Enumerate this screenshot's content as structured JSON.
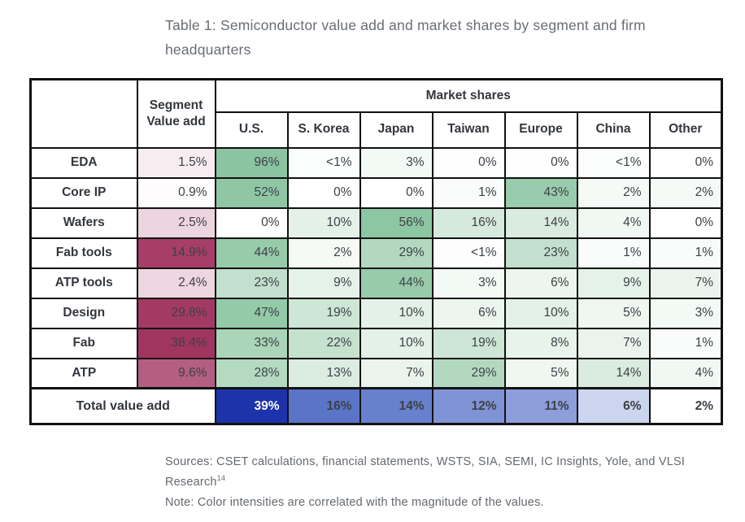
{
  "title": "Table 1: Semiconductor value add and market shares by segment and firm headquarters",
  "table": {
    "corner_label": "",
    "value_add_header": "Segment Value add",
    "group_header": "Market shares",
    "columns": [
      "U.S.",
      "S. Korea",
      "Japan",
      "Taiwan",
      "Europe",
      "China",
      "Other"
    ],
    "rows": [
      {
        "label": "EDA",
        "value_add": {
          "text": "1.5%",
          "bg": "#f7edf1"
        },
        "cells": [
          {
            "text": "96%",
            "bg": "#8ac4a1"
          },
          {
            "text": "<1%",
            "bg": "#fbfdfc"
          },
          {
            "text": "3%",
            "bg": "#f3f9f5"
          },
          {
            "text": "0%",
            "bg": "#fdfefd"
          },
          {
            "text": "0%",
            "bg": "#fdfefd"
          },
          {
            "text": "<1%",
            "bg": "#fbfdfc"
          },
          {
            "text": "0%",
            "bg": "#ffffff"
          }
        ]
      },
      {
        "label": "Core IP",
        "value_add": {
          "text": "0.9%",
          "bg": "#fefcfd"
        },
        "cells": [
          {
            "text": "52%",
            "bg": "#8fc7a5"
          },
          {
            "text": "0%",
            "bg": "#ffffff"
          },
          {
            "text": "0%",
            "bg": "#ffffff"
          },
          {
            "text": "1%",
            "bg": "#f9fcfa"
          },
          {
            "text": "43%",
            "bg": "#99ccac"
          },
          {
            "text": "2%",
            "bg": "#f6faf7"
          },
          {
            "text": "2%",
            "bg": "#f6faf7"
          }
        ]
      },
      {
        "label": "Wafers",
        "value_add": {
          "text": "2.5%",
          "bg": "#edd5df"
        },
        "cells": [
          {
            "text": "0%",
            "bg": "#ffffff"
          },
          {
            "text": "10%",
            "bg": "#e3f1e8"
          },
          {
            "text": "56%",
            "bg": "#8dc6a3"
          },
          {
            "text": "16%",
            "bg": "#d5e9dc"
          },
          {
            "text": "14%",
            "bg": "#d9ecdf"
          },
          {
            "text": "4%",
            "bg": "#f1f8f3"
          },
          {
            "text": "0%",
            "bg": "#ffffff"
          }
        ]
      },
      {
        "label": "Fab tools",
        "value_add": {
          "text": "14.9%",
          "bg": "#a63e67"
        },
        "cells": [
          {
            "text": "44%",
            "bg": "#97cbaa"
          },
          {
            "text": "2%",
            "bg": "#f6faf7"
          },
          {
            "text": "29%",
            "bg": "#b2d9c0"
          },
          {
            "text": "<1%",
            "bg": "#fcfdfc"
          },
          {
            "text": "23%",
            "bg": "#c2e0cd"
          },
          {
            "text": "1%",
            "bg": "#f9fcfa"
          },
          {
            "text": "1%",
            "bg": "#f9fcfa"
          }
        ]
      },
      {
        "label": "ATP tools",
        "value_add": {
          "text": "2.4%",
          "bg": "#eed6e0"
        },
        "cells": [
          {
            "text": "23%",
            "bg": "#c2e0cd"
          },
          {
            "text": "9%",
            "bg": "#e5f2e9"
          },
          {
            "text": "44%",
            "bg": "#97cbaa"
          },
          {
            "text": "3%",
            "bg": "#f3f9f5"
          },
          {
            "text": "6%",
            "bg": "#ecf6ef"
          },
          {
            "text": "9%",
            "bg": "#e5f2e9"
          },
          {
            "text": "7%",
            "bg": "#eaf4ed"
          }
        ]
      },
      {
        "label": "Design",
        "value_add": {
          "text": "29.8%",
          "bg": "#a33a64"
        },
        "cells": [
          {
            "text": "47%",
            "bg": "#94caa8"
          },
          {
            "text": "19%",
            "bg": "#cde6d6"
          },
          {
            "text": "10%",
            "bg": "#e3f1e8"
          },
          {
            "text": "6%",
            "bg": "#ecf6ef"
          },
          {
            "text": "10%",
            "bg": "#e3f1e8"
          },
          {
            "text": "5%",
            "bg": "#eff7f1"
          },
          {
            "text": "3%",
            "bg": "#f3f9f5"
          }
        ]
      },
      {
        "label": "Fab",
        "value_add": {
          "text": "38.4%",
          "bg": "#a03660"
        },
        "cells": [
          {
            "text": "33%",
            "bg": "#aad5b9"
          },
          {
            "text": "22%",
            "bg": "#c5e2cf"
          },
          {
            "text": "10%",
            "bg": "#e3f1e8"
          },
          {
            "text": "19%",
            "bg": "#cde6d6"
          },
          {
            "text": "8%",
            "bg": "#e7f3eb"
          },
          {
            "text": "7%",
            "bg": "#eaf4ed"
          },
          {
            "text": "1%",
            "bg": "#f9fcfa"
          }
        ]
      },
      {
        "label": "ATP",
        "value_add": {
          "text": "9.6%",
          "bg": "#b35e82"
        },
        "cells": [
          {
            "text": "28%",
            "bg": "#b4dac2"
          },
          {
            "text": "13%",
            "bg": "#dbede1"
          },
          {
            "text": "7%",
            "bg": "#eaf4ed"
          },
          {
            "text": "29%",
            "bg": "#b2d9c0"
          },
          {
            "text": "5%",
            "bg": "#eff7f1"
          },
          {
            "text": "14%",
            "bg": "#d9ecdf"
          },
          {
            "text": "4%",
            "bg": "#f1f8f3"
          }
        ]
      }
    ],
    "total": {
      "label": "Total value add",
      "cells": [
        {
          "text": "39%",
          "bg": "#1d33ab",
          "fg": "#ffffff"
        },
        {
          "text": "16%",
          "bg": "#5a74c8"
        },
        {
          "text": "14%",
          "bg": "#6781ce"
        },
        {
          "text": "12%",
          "bg": "#8093d6"
        },
        {
          "text": "11%",
          "bg": "#8d9eda"
        },
        {
          "text": "6%",
          "bg": "#cbd5ee"
        },
        {
          "text": "2%",
          "bg": "#ffffff"
        }
      ]
    }
  },
  "footer": {
    "sources": "Sources: CSET calculations, financial statements, WSTS, SIA, SEMI, IC Insights, Yole, and VLSI Research",
    "footnote_marker": "14",
    "note": "Note: Color intensities are correlated with the magnitude of the values."
  },
  "colors": {
    "share_scale_max": "#8ac4a1",
    "value_add_scale_max": "#a03660",
    "total_scale_max": "#1d33ab",
    "border": "#111111",
    "text": "#3d4147",
    "muted_text": "#64696f"
  },
  "chart_data": {
    "type": "table",
    "title": "Table 1: Semiconductor value add and market shares by segment and firm headquarters",
    "row_header": "Segment",
    "columns": [
      "Segment Value add",
      "U.S.",
      "S. Korea",
      "Japan",
      "Taiwan",
      "Europe",
      "China",
      "Other"
    ],
    "rows": [
      [
        "EDA",
        "1.5%",
        "96%",
        "<1%",
        "3%",
        "0%",
        "0%",
        "<1%",
        "0%"
      ],
      [
        "Core IP",
        "0.9%",
        "52%",
        "0%",
        "0%",
        "1%",
        "43%",
        "2%",
        "2%"
      ],
      [
        "Wafers",
        "2.5%",
        "0%",
        "10%",
        "56%",
        "16%",
        "14%",
        "4%",
        "0%"
      ],
      [
        "Fab tools",
        "14.9%",
        "44%",
        "2%",
        "29%",
        "<1%",
        "23%",
        "1%",
        "1%"
      ],
      [
        "ATP tools",
        "2.4%",
        "23%",
        "9%",
        "44%",
        "3%",
        "6%",
        "9%",
        "7%"
      ],
      [
        "Design",
        "29.8%",
        "47%",
        "19%",
        "10%",
        "6%",
        "10%",
        "5%",
        "3%"
      ],
      [
        "Fab",
        "38.4%",
        "33%",
        "22%",
        "10%",
        "19%",
        "8%",
        "7%",
        "1%"
      ],
      [
        "ATP",
        "9.6%",
        "28%",
        "13%",
        "7%",
        "29%",
        "5%",
        "14%",
        "4%"
      ],
      [
        "Total value add",
        "",
        "39%",
        "16%",
        "14%",
        "12%",
        "11%",
        "6%",
        "2%"
      ]
    ]
  }
}
